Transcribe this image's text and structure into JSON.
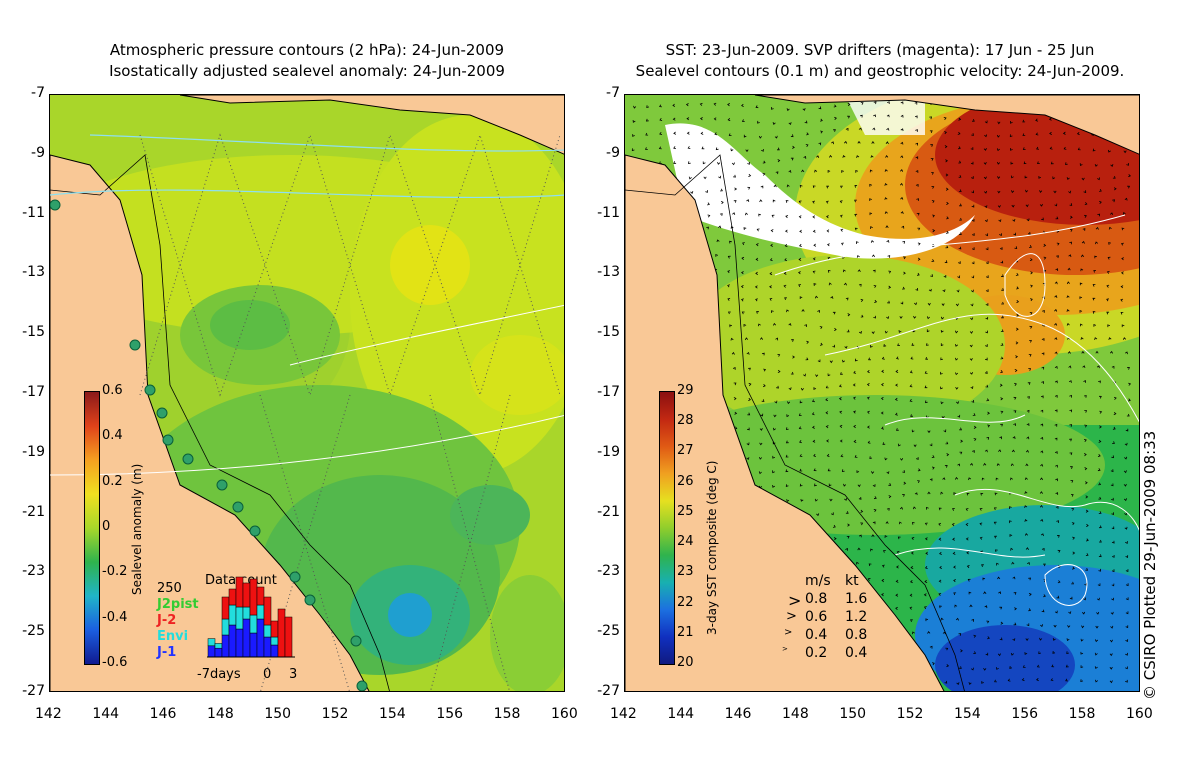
{
  "left_panel": {
    "title_line1": "Atmospheric pressure contours (2 hPa): 24-Jun-2009",
    "title_line2": "Isostatically adjusted sealevel anomaly: 24-Jun-2009",
    "colorbar": {
      "label": "Sealevel anomaly (m)",
      "ticks": [
        "0.6",
        "0.4",
        "0.2",
        "0",
        "-0.2",
        "-0.4",
        "-0.6"
      ]
    },
    "inset": {
      "title": "Data count",
      "max_label": "250",
      "legend": [
        {
          "name": "J2pist",
          "color": "#33cc33"
        },
        {
          "name": "J-2",
          "color": "#ee2222"
        },
        {
          "name": "Envi",
          "color": "#22dddd"
        },
        {
          "name": "J-1",
          "color": "#2233ff"
        }
      ],
      "x_labels": [
        "-7days",
        "0",
        "3"
      ],
      "bars": [
        {
          "j1": 28,
          "envi": 18,
          "j2": 0
        },
        {
          "j1": 22,
          "envi": 12,
          "j2": 0
        },
        {
          "j1": 55,
          "envi": 40,
          "j2": 55
        },
        {
          "j1": 80,
          "envi": 50,
          "j2": 40
        },
        {
          "j1": 70,
          "envi": 55,
          "j2": 75
        },
        {
          "j1": 95,
          "envi": 30,
          "j2": 60
        },
        {
          "j1": 60,
          "envi": 45,
          "j2": 90
        },
        {
          "j1": 95,
          "envi": 35,
          "j2": 45
        },
        {
          "j1": 50,
          "envi": 30,
          "j2": 70
        },
        {
          "j1": 30,
          "envi": 20,
          "j2": 40
        },
        {
          "j1": 0,
          "envi": 0,
          "j2": 120
        },
        {
          "j1": 0,
          "envi": 0,
          "j2": 100
        }
      ]
    },
    "y_ticks": [
      "-7",
      "-9",
      "-11",
      "-13",
      "-15",
      "-17",
      "-19",
      "-21",
      "-23",
      "-25",
      "-27"
    ],
    "x_ticks": [
      "142",
      "144",
      "146",
      "148",
      "150",
      "152",
      "154",
      "156",
      "158",
      "160"
    ]
  },
  "right_panel": {
    "title_line1": "SST: 23-Jun-2009. SVP drifters (magenta): 17 Jun - 25 Jun",
    "title_line2": "Sealevel contours (0.1 m) and geostrophic velocity: 24-Jun-2009.",
    "colorbar": {
      "label": "3-day SST composite (deg C)",
      "ticks": [
        "29",
        "28",
        "27",
        "26",
        "25",
        "24",
        "23",
        "22",
        "21",
        "20"
      ]
    },
    "velocity_legend": {
      "header_ms": "m/s",
      "header_kt": "kt",
      "rows": [
        {
          "ms": "0.8",
          "kt": "1.6"
        },
        {
          "ms": "0.6",
          "kt": "1.2"
        },
        {
          "ms": "0.4",
          "kt": "0.8"
        },
        {
          "ms": "0.2",
          "kt": "0.4"
        }
      ]
    },
    "y_ticks": [
      "-7",
      "-9",
      "-11",
      "-13",
      "-15",
      "-17",
      "-19",
      "-21",
      "-23",
      "-25",
      "-27"
    ],
    "x_ticks": [
      "142",
      "144",
      "146",
      "148",
      "150",
      "152",
      "154",
      "156",
      "158",
      "160"
    ]
  },
  "credit": "© CSIRO Plotted 29-Jun-2009 08:33",
  "colors": {
    "land": "#f9c896",
    "coast": "#000000"
  }
}
